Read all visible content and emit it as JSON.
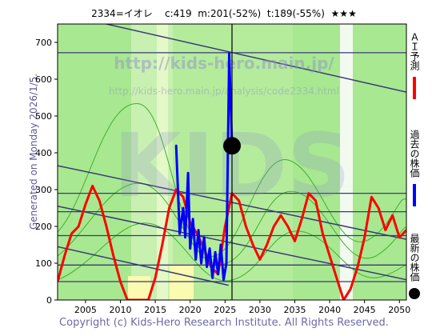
{
  "header": {
    "code": "2334=イオレ",
    "current": "c:419",
    "max": "m:201(-52%)",
    "target": "t:189(-55%)",
    "stars": "★★★"
  },
  "side_label": "Generated on Monday 2026/1/5.",
  "footer": "Copyright (c) Kids-Hero Research Institute. All Rights Reserved.",
  "watermark": {
    "line1": "http://kids-hero.main.jp/",
    "line2": "http://kids-hero.main.jp/analysis/code2334.html",
    "big": "KIDS"
  },
  "legend": {
    "ai": "ＡＩ予測",
    "past": "過去の株価",
    "latest": "最新の株価"
  },
  "colors": {
    "ai": "#ff0000",
    "past": "#0000ff",
    "latest": "#000000",
    "band": "#a8e890",
    "trend": "#3a3a78"
  },
  "chart_data": {
    "type": "line",
    "title": "",
    "xlim": [
      2001,
      2051
    ],
    "ylim": [
      0,
      750
    ],
    "xticks": [
      2005,
      2010,
      2015,
      2020,
      2025,
      2030,
      2035,
      2040,
      2045,
      2050
    ],
    "yticks": [
      0,
      100,
      200,
      300,
      400,
      500,
      600,
      700
    ],
    "series": [
      {
        "name": "AI予測",
        "color": "#ff0000",
        "x": [
          2001,
          2002,
          2003,
          2004,
          2005,
          2006,
          2007,
          2008,
          2009,
          2010,
          2011,
          2012,
          2013,
          2014,
          2015,
          2016,
          2017,
          2018,
          2019,
          2020,
          2021,
          2022,
          2023,
          2024,
          2025,
          2026,
          2027,
          2028,
          2029,
          2030,
          2031,
          2032,
          2033,
          2034,
          2035,
          2036,
          2037,
          2038,
          2039,
          2040,
          2041,
          2042,
          2043,
          2044,
          2045,
          2046,
          2047,
          2048,
          2049,
          2050,
          2051
        ],
        "y": [
          50,
          120,
          180,
          200,
          260,
          310,
          270,
          200,
          120,
          50,
          0,
          0,
          0,
          0,
          60,
          150,
          250,
          300,
          280,
          210,
          180,
          140,
          90,
          70,
          200,
          290,
          270,
          200,
          150,
          110,
          150,
          200,
          230,
          200,
          160,
          220,
          290,
          270,
          180,
          120,
          60,
          0,
          30,
          90,
          170,
          280,
          250,
          190,
          230,
          170,
          190
        ]
      },
      {
        "name": "過去の株価",
        "color": "#0000ff",
        "x": [
          2018,
          2018.5,
          2019,
          2019.3,
          2019.7,
          2020,
          2020.4,
          2020.8,
          2021.2,
          2021.6,
          2022,
          2022.4,
          2022.8,
          2023.2,
          2023.6,
          2024,
          2024.4,
          2024.8,
          2025.2,
          2025.6,
          2026
        ],
        "y": [
          420,
          180,
          250,
          170,
          345,
          140,
          220,
          110,
          190,
          100,
          170,
          90,
          140,
          60,
          130,
          70,
          150,
          55,
          100,
          670,
          419
        ]
      }
    ],
    "latest_point": {
      "x": 2026,
      "y": 419
    },
    "trend_lines": [
      {
        "x": [
          2001,
          2051
        ],
        "y": [
          780,
          565
        ]
      },
      {
        "x": [
          2001,
          2051
        ],
        "y": [
          365,
          165
        ]
      },
      {
        "x": [
          2001,
          2051
        ],
        "y": [
          255,
          55
        ]
      },
      {
        "x": [
          2001,
          2025.5
        ],
        "y": [
          145,
          40
        ]
      }
    ],
    "horizontal_lines": [
      672,
      290,
      240,
      175,
      95,
      50
    ],
    "grid": false
  }
}
